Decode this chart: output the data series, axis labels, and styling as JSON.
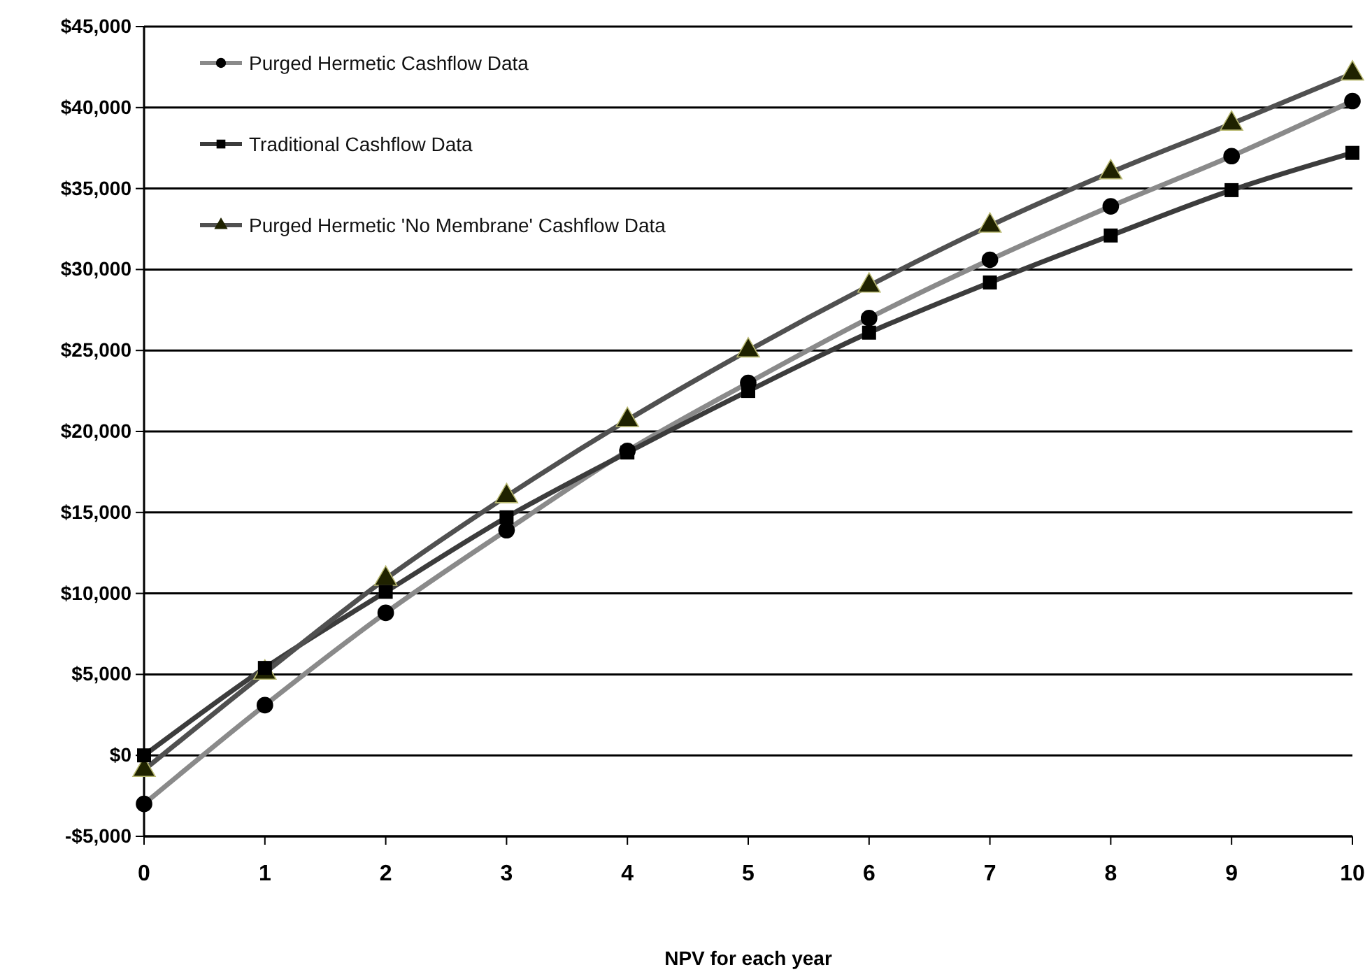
{
  "chart_data": {
    "type": "line",
    "xlabel": "NPV for each year",
    "x": [
      0,
      1,
      2,
      3,
      4,
      5,
      6,
      7,
      8,
      9,
      10
    ],
    "xlim": [
      0,
      10
    ],
    "xticks": [
      0,
      1,
      2,
      3,
      4,
      5,
      6,
      7,
      8,
      9,
      10
    ],
    "ylim": [
      -5000,
      45000
    ],
    "yticks": [
      {
        "value": -5000,
        "label": "-$5,000"
      },
      {
        "value": 0,
        "label": "$0"
      },
      {
        "value": 5000,
        "label": "$5,000"
      },
      {
        "value": 10000,
        "label": "$10,000"
      },
      {
        "value": 15000,
        "label": "$15,000"
      },
      {
        "value": 20000,
        "label": "$20,000"
      },
      {
        "value": 25000,
        "label": "$25,000"
      },
      {
        "value": 30000,
        "label": "$30,000"
      },
      {
        "value": 35000,
        "label": "$35,000"
      },
      {
        "value": 40000,
        "label": "$40,000"
      },
      {
        "value": 45000,
        "label": "$45,000"
      }
    ],
    "grid": "y",
    "legend": "top left",
    "line_style": "solid",
    "series": [
      {
        "name": "Purged Hermetic Cashflow Data",
        "color": "#8a8a8a",
        "marker": "circle",
        "values": [
          -3000,
          3100,
          8800,
          13900,
          18800,
          23000,
          27000,
          30600,
          33900,
          37000,
          40400
        ]
      },
      {
        "name": "Traditional Cashflow Data",
        "color": "#3c3c3c",
        "marker": "square",
        "values": [
          0,
          5400,
          10100,
          14700,
          18700,
          22500,
          26100,
          29200,
          32100,
          34900,
          37200
        ]
      },
      {
        "name": "Purged Hermetic 'No Membrane' Cashflow Data",
        "color": "#505050",
        "marker": "triangle",
        "values": [
          -900,
          5100,
          10900,
          16000,
          20700,
          25000,
          29000,
          32700,
          36000,
          39000,
          42100
        ]
      }
    ]
  }
}
